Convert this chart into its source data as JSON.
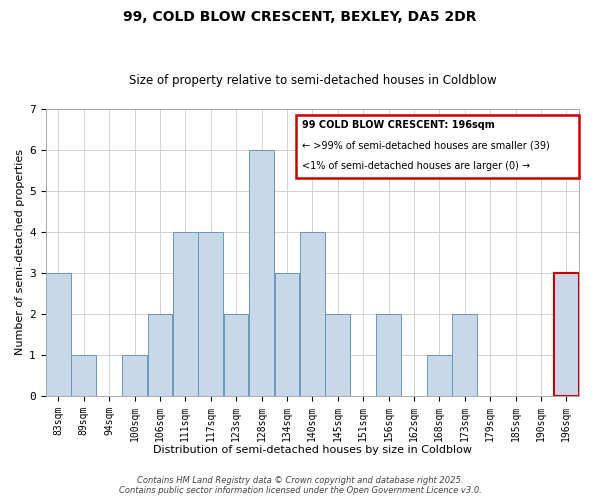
{
  "title": "99, COLD BLOW CRESCENT, BEXLEY, DA5 2DR",
  "subtitle": "Size of property relative to semi-detached houses in Coldblow",
  "xlabel": "Distribution of semi-detached houses by size in Coldblow",
  "ylabel": "Number of semi-detached properties",
  "bar_labels": [
    "83sqm",
    "89sqm",
    "94sqm",
    "100sqm",
    "106sqm",
    "111sqm",
    "117sqm",
    "123sqm",
    "128sqm",
    "134sqm",
    "140sqm",
    "145sqm",
    "151sqm",
    "156sqm",
    "162sqm",
    "168sqm",
    "173sqm",
    "179sqm",
    "185sqm",
    "190sqm",
    "196sqm"
  ],
  "bar_values": [
    3,
    1,
    0,
    1,
    2,
    4,
    4,
    2,
    6,
    3,
    4,
    2,
    0,
    2,
    0,
    1,
    2,
    0,
    0,
    0,
    3
  ],
  "bar_color": "#c8d8e8",
  "bar_edge_color": "#6699bb",
  "highlight_index": 20,
  "highlight_bar_edge_color": "#cc0000",
  "ylim": [
    0,
    7
  ],
  "yticks": [
    0,
    1,
    2,
    3,
    4,
    5,
    6,
    7
  ],
  "legend_title": "99 COLD BLOW CRESCENT: 196sqm",
  "legend_line1": "← >99% of semi-detached houses are smaller (39)",
  "legend_line2": "<1% of semi-detached houses are larger (0) →",
  "legend_box_color": "#cc0000",
  "footer_line1": "Contains HM Land Registry data © Crown copyright and database right 2025.",
  "footer_line2": "Contains public sector information licensed under the Open Government Licence v3.0.",
  "background_color": "#ffffff",
  "grid_color": "#cccccc"
}
